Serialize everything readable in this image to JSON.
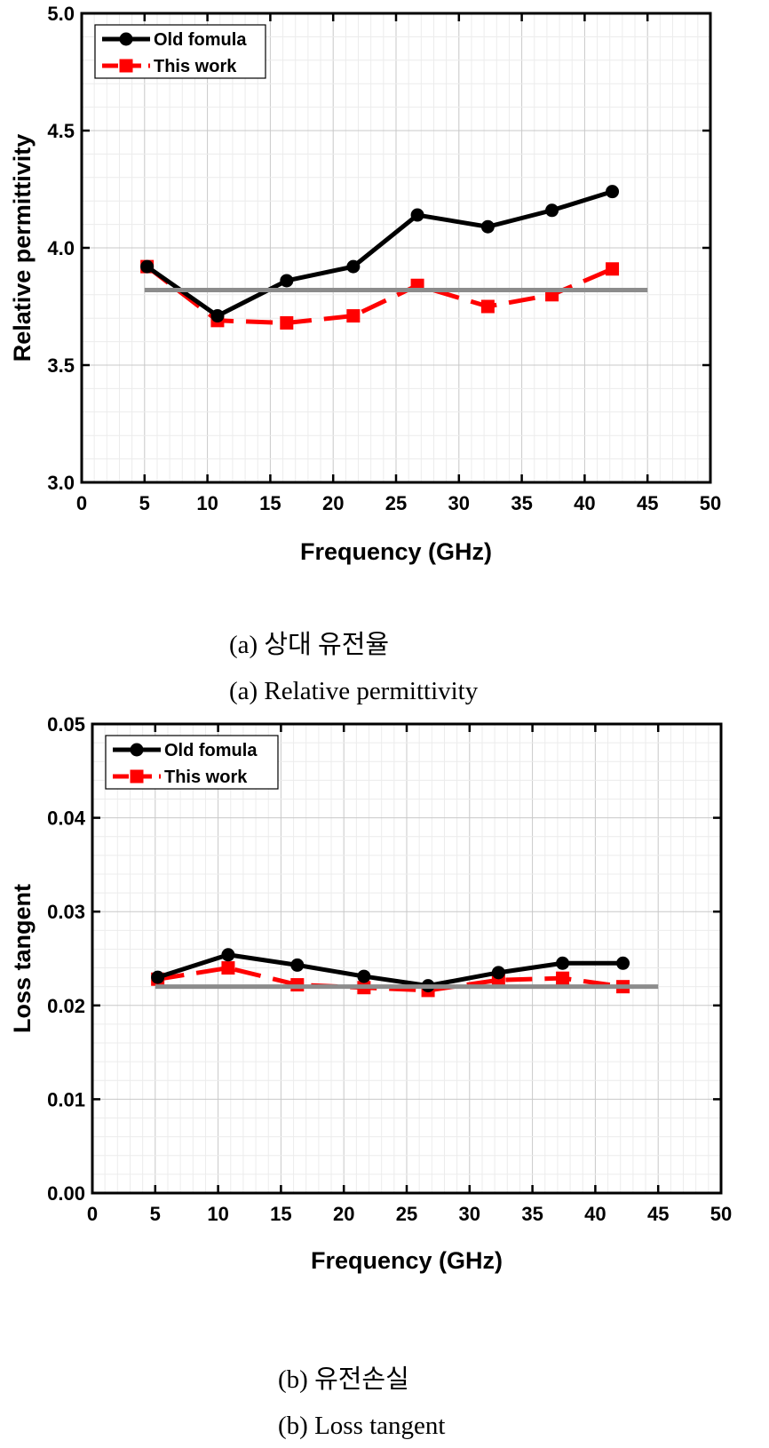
{
  "chart_data": [
    {
      "type": "line",
      "title": "",
      "xlabel": "Frequency (GHz)",
      "ylabel": "Relative permittivity",
      "xlim": [
        0,
        50
      ],
      "ylim": [
        3.0,
        5.0
      ],
      "xticks": [
        "0",
        "5",
        "10",
        "15",
        "20",
        "25",
        "30",
        "35",
        "40",
        "45",
        "50"
      ],
      "yticks": [
        "3.0",
        "3.5",
        "4.0",
        "4.5",
        "5.0"
      ],
      "grid": true,
      "legend": "top-left",
      "series": [
        {
          "name": "Old fomula",
          "color": "#000000",
          "marker": "circle",
          "dash": "solid",
          "x": [
            5.2,
            10.8,
            16.3,
            21.6,
            26.7,
            32.3,
            37.4,
            42.2
          ],
          "y": [
            3.92,
            3.71,
            3.86,
            3.92,
            4.14,
            4.09,
            4.16,
            4.24
          ]
        },
        {
          "name": "This work",
          "color": "#ff0000",
          "marker": "square",
          "dash": "dashed",
          "x": [
            5.2,
            10.8,
            16.3,
            21.6,
            26.7,
            32.3,
            37.4,
            42.2
          ],
          "y": [
            3.92,
            3.69,
            3.68,
            3.71,
            3.84,
            3.75,
            3.8,
            3.91
          ]
        },
        {
          "name": "",
          "color": "#8c8c8c",
          "marker": "none",
          "dash": "solid",
          "x": [
            5,
            45
          ],
          "y": [
            3.82,
            3.82
          ]
        }
      ]
    },
    {
      "type": "line",
      "title": "",
      "xlabel": "Frequency (GHz)",
      "ylabel": "Loss tangent",
      "xlim": [
        0,
        50
      ],
      "ylim": [
        0.0,
        0.05
      ],
      "xticks": [
        "0",
        "5",
        "10",
        "15",
        "20",
        "25",
        "30",
        "35",
        "40",
        "45",
        "50"
      ],
      "yticks": [
        "0.00",
        "0.01",
        "0.02",
        "0.03",
        "0.04",
        "0.05"
      ],
      "grid": true,
      "legend": "top-left",
      "series": [
        {
          "name": "Old fomula",
          "color": "#000000",
          "marker": "circle",
          "dash": "solid",
          "x": [
            5.2,
            10.8,
            16.3,
            21.6,
            26.7,
            32.3,
            37.4,
            42.2
          ],
          "y": [
            0.023,
            0.0254,
            0.0243,
            0.0231,
            0.0221,
            0.0235,
            0.0245,
            0.0245
          ]
        },
        {
          "name": "This work",
          "color": "#ff0000",
          "marker": "square",
          "dash": "dashed",
          "x": [
            5.2,
            10.8,
            16.3,
            21.6,
            26.7,
            32.3,
            37.4,
            42.2
          ],
          "y": [
            0.0228,
            0.024,
            0.0222,
            0.0219,
            0.0216,
            0.0227,
            0.0229,
            0.022
          ]
        },
        {
          "name": "",
          "color": "#8c8c8c",
          "marker": "none",
          "dash": "solid",
          "x": [
            5,
            45
          ],
          "y": [
            0.022,
            0.022
          ]
        }
      ]
    }
  ],
  "captions": [
    {
      "korean": "(a)  상대  유전율",
      "english": "(a)  Relative  permittivity"
    },
    {
      "korean": "(b)  유전손실",
      "english": "(b)  Loss  tangent"
    }
  ]
}
